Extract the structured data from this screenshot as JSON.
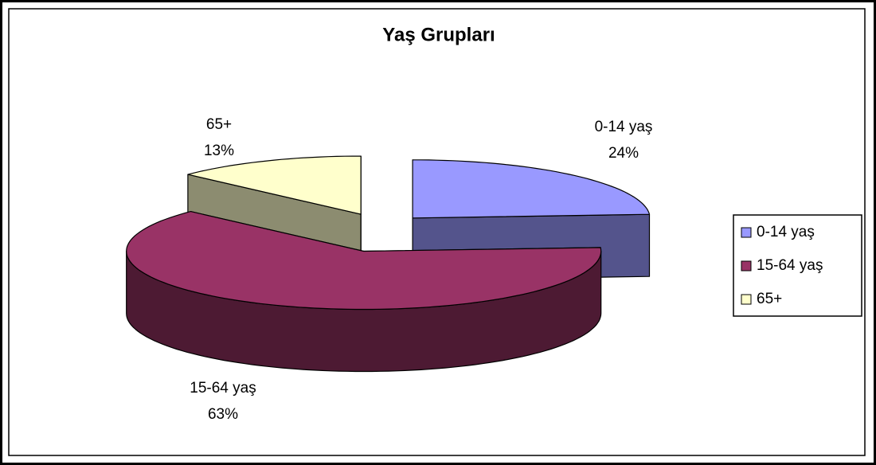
{
  "chart_data": {
    "type": "pie",
    "title": "Yaş Grupları",
    "categories": [
      "0-14 yaş",
      "15-64 yaş",
      "65+"
    ],
    "values": [
      24,
      63,
      13
    ],
    "value_labels": [
      "24%",
      "63%",
      "13%"
    ],
    "colors": [
      "#9999ff",
      "#993366",
      "#ffffcc"
    ],
    "legend": "right"
  }
}
